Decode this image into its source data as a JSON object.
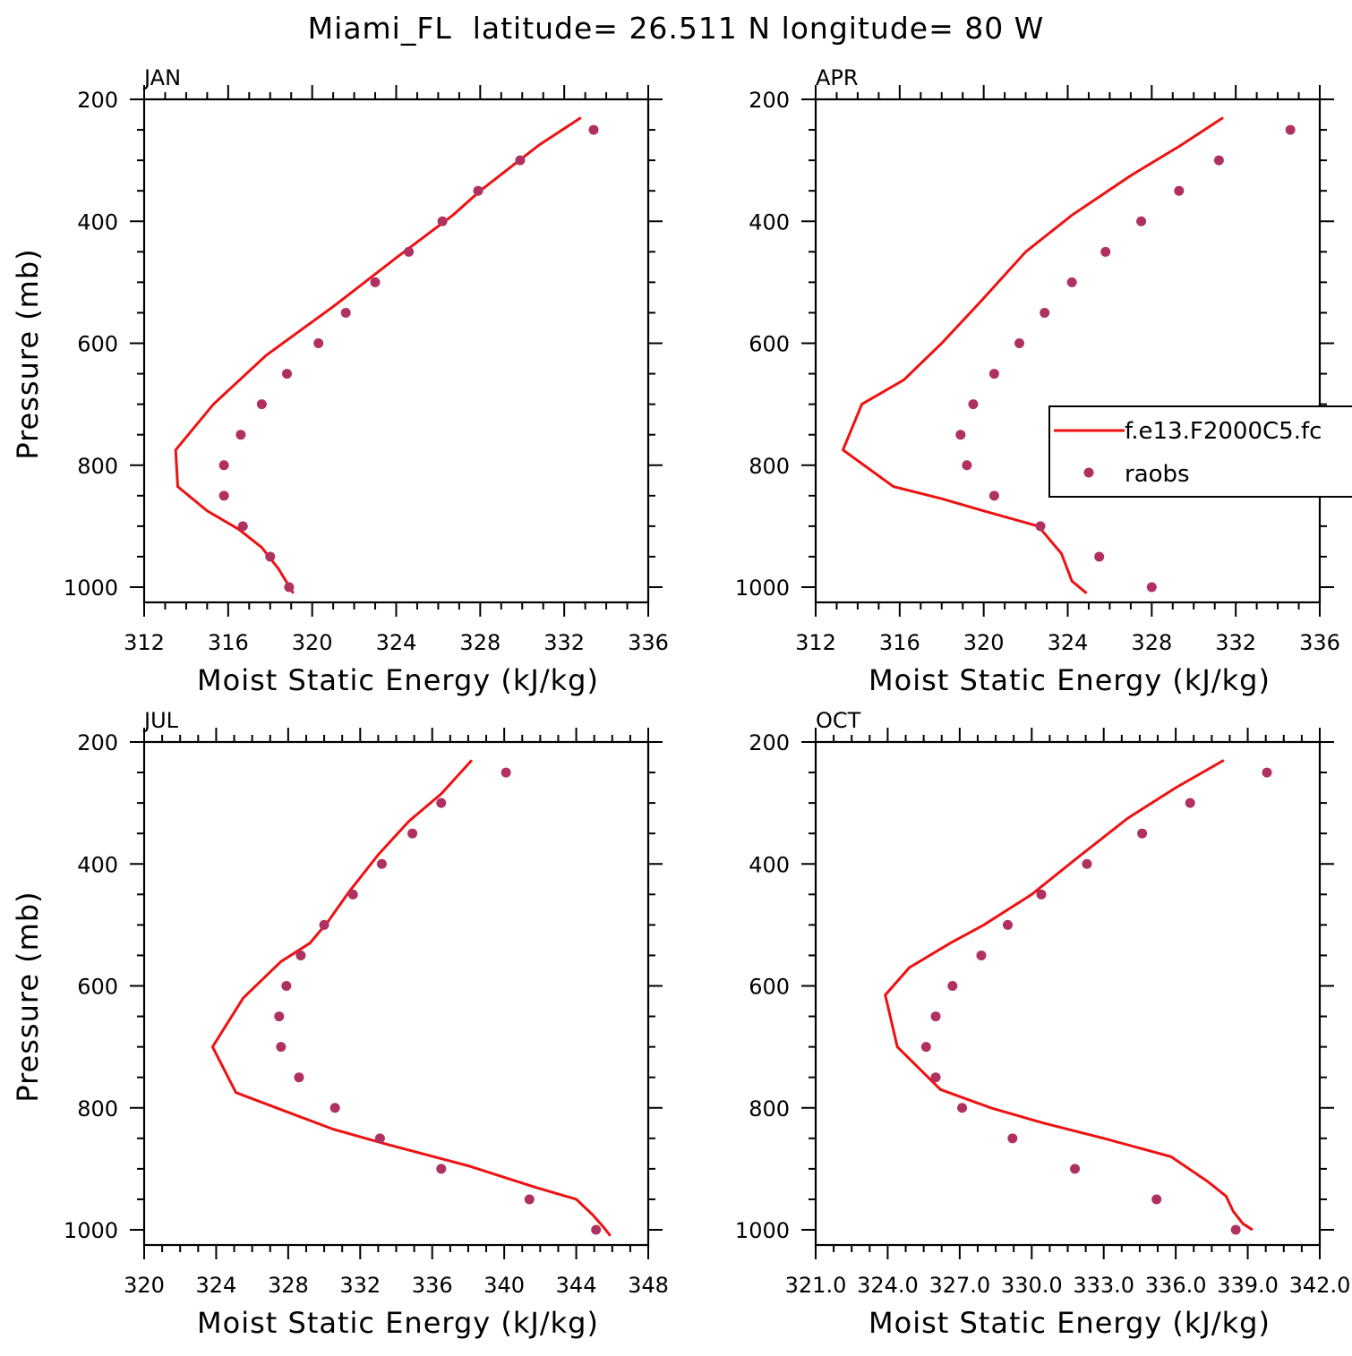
{
  "title": "Miami_FL  latitude= 26.511 N longitude= 80 W",
  "colors": {
    "model": "#ee1111",
    "obs": "#b03060"
  },
  "legend": {
    "model_label": "f.e13.F2000C5.fc",
    "obs_label": "raobs",
    "placement": "right"
  },
  "chart_data": [
    {
      "type": "line",
      "title": "JAN",
      "xlabel": "Moist Static Energy (kJ/kg)",
      "ylabel": "Pressure (mb)",
      "xlim": [
        312,
        336
      ],
      "ylim": [
        200,
        1000
      ],
      "y_inverted": true,
      "xticks": [
        "312",
        "316",
        "320",
        "324",
        "328",
        "332",
        "336"
      ],
      "yticks": [
        "200",
        "400",
        "600",
        "800",
        "1000"
      ],
      "series": [
        {
          "kind": "line",
          "x": [
            332.8,
            330.8,
            328.0,
            326.7,
            324.0,
            321.0,
            317.8,
            315.3,
            313.5,
            313.6,
            315.0,
            316.5,
            317.6,
            318.4,
            319.1
          ],
          "y": [
            230,
            275,
            350,
            390,
            460,
            540,
            620,
            700,
            775,
            835,
            875,
            905,
            935,
            970,
            1010
          ]
        },
        {
          "kind": "scatter",
          "x": [
            333.4,
            329.9,
            327.9,
            326.2,
            324.6,
            323.0,
            321.6,
            320.3,
            318.8,
            317.6,
            316.6,
            315.8,
            315.8,
            316.7,
            318.0,
            318.9
          ],
          "y": [
            250,
            300,
            350,
            400,
            450,
            500,
            550,
            600,
            650,
            700,
            750,
            800,
            850,
            900,
            950,
            1000
          ]
        }
      ]
    },
    {
      "type": "line",
      "title": "APR",
      "xlabel": "Moist Static Energy (kJ/kg)",
      "ylabel": "",
      "xlim": [
        312,
        336
      ],
      "ylim": [
        200,
        1000
      ],
      "y_inverted": true,
      "xticks": [
        "312",
        "316",
        "320",
        "324",
        "328",
        "332",
        "336"
      ],
      "yticks": [
        "200",
        "400",
        "600",
        "800",
        "1000"
      ],
      "series": [
        {
          "kind": "line",
          "x": [
            331.4,
            329.4,
            327.0,
            324.2,
            322.0,
            319.9,
            318.0,
            316.2,
            314.2,
            313.3,
            315.7,
            318.0,
            320.0,
            322.6,
            323.7,
            324.2,
            324.9
          ],
          "y": [
            230,
            275,
            325,
            390,
            450,
            530,
            600,
            660,
            700,
            775,
            835,
            855,
            875,
            900,
            945,
            990,
            1010
          ]
        },
        {
          "kind": "scatter",
          "x": [
            334.6,
            331.2,
            329.3,
            327.5,
            325.8,
            324.2,
            322.9,
            321.7,
            320.5,
            319.5,
            318.9,
            319.2,
            320.5,
            322.7,
            325.5,
            328.0
          ],
          "y": [
            250,
            300,
            350,
            400,
            450,
            500,
            550,
            600,
            650,
            700,
            750,
            800,
            850,
            900,
            950,
            1000
          ]
        }
      ]
    },
    {
      "type": "line",
      "title": "JUL",
      "xlabel": "Moist Static Energy (kJ/kg)",
      "ylabel": "Pressure (mb)",
      "xlim": [
        320,
        348
      ],
      "ylim": [
        200,
        1000
      ],
      "y_inverted": true,
      "xticks": [
        "320",
        "324",
        "328",
        "332",
        "336",
        "340",
        "344",
        "348"
      ],
      "yticks": [
        "200",
        "400",
        "600",
        "800",
        "1000"
      ],
      "series": [
        {
          "kind": "line",
          "x": [
            338.2,
            336.5,
            334.7,
            333.0,
            331.4,
            330.2,
            329.2,
            327.6,
            325.5,
            323.8,
            325.1,
            327.8,
            330.5,
            333.5,
            338.0,
            341.7,
            344.0,
            344.9,
            345.5,
            345.9
          ],
          "y": [
            230,
            285,
            330,
            385,
            445,
            495,
            530,
            560,
            620,
            700,
            775,
            805,
            835,
            860,
            895,
            930,
            950,
            975,
            995,
            1010
          ]
        },
        {
          "kind": "scatter",
          "x": [
            340.1,
            336.5,
            334.9,
            333.2,
            331.6,
            330.0,
            328.7,
            327.9,
            327.5,
            327.6,
            328.6,
            330.6,
            333.1,
            336.5,
            341.4,
            345.1
          ],
          "y": [
            250,
            300,
            350,
            400,
            450,
            500,
            550,
            600,
            650,
            700,
            750,
            800,
            850,
            900,
            950,
            1000
          ]
        }
      ]
    },
    {
      "type": "line",
      "title": "OCT",
      "xlabel": "Moist Static Energy (kJ/kg)",
      "ylabel": "",
      "xlim": [
        321.0,
        342.0
      ],
      "ylim": [
        200,
        1000
      ],
      "y_inverted": true,
      "xticks": [
        "321.0",
        "324.0",
        "327.0",
        "330.0",
        "333.0",
        "336.0",
        "339.0",
        "342.0"
      ],
      "yticks": [
        "200",
        "400",
        "600",
        "800",
        "1000"
      ],
      "series": [
        {
          "kind": "line",
          "x": [
            338.0,
            336.0,
            334.0,
            331.9,
            330.0,
            328.0,
            326.6,
            324.9,
            323.9,
            324.4,
            326.2,
            328.3,
            330.5,
            333.0,
            335.8,
            337.3,
            338.1,
            338.4,
            338.8,
            339.2
          ],
          "y": [
            230,
            275,
            325,
            390,
            450,
            500,
            530,
            570,
            615,
            700,
            770,
            800,
            825,
            850,
            880,
            920,
            945,
            970,
            990,
            1000
          ]
        },
        {
          "kind": "scatter",
          "x": [
            339.8,
            336.6,
            334.6,
            332.3,
            330.4,
            329.0,
            327.9,
            326.7,
            326.0,
            325.6,
            326.0,
            327.1,
            329.2,
            331.8,
            335.2,
            338.5
          ],
          "y": [
            250,
            300,
            350,
            400,
            450,
            500,
            550,
            600,
            650,
            700,
            750,
            800,
            850,
            900,
            950,
            1000
          ]
        }
      ]
    }
  ]
}
